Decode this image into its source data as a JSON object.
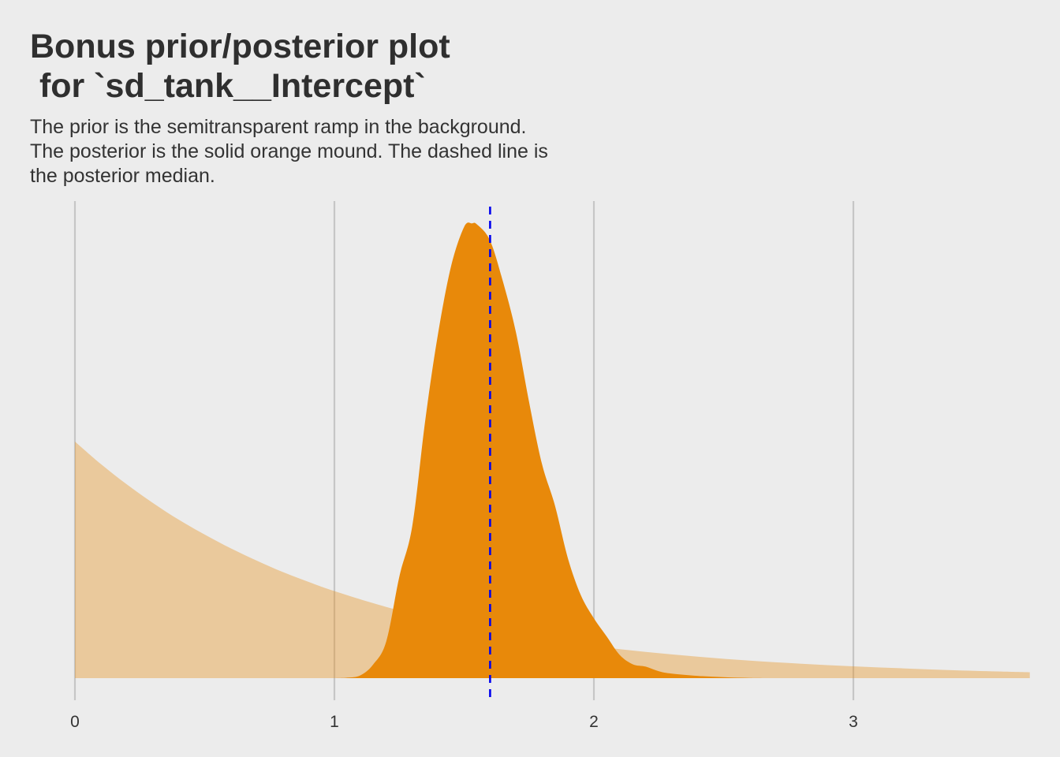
{
  "chart_data": {
    "type": "area",
    "title": "Bonus prior/posterior plot\n for `sd_tank__Intercept`",
    "subtitle": "The prior is the semitransparent ramp in the background. The posterior is the solid orange mound. The dashed line is the posterior median.",
    "xlabel": "",
    "ylabel": "",
    "xlim": [
      0,
      3.68
    ],
    "x_ticks": [
      0,
      1,
      2,
      3
    ],
    "x_tick_labels": [
      "0",
      "1",
      "2",
      "3"
    ],
    "grid": "vertical major only",
    "legend": "none",
    "series": [
      {
        "role": "prior",
        "description": "semitransparent ramp",
        "color": "#e8890a",
        "opacity": 0.35,
        "x": [
          0,
          0.1,
          0.2,
          0.3,
          0.4,
          0.5,
          0.6,
          0.7,
          0.8,
          0.9,
          1.0,
          1.2,
          1.4,
          1.6,
          1.8,
          2.0,
          2.2,
          2.4,
          2.6,
          2.8,
          3.0,
          3.2,
          3.4,
          3.6,
          3.68
        ],
        "y": [
          1.0,
          0.905,
          0.819,
          0.741,
          0.67,
          0.607,
          0.549,
          0.497,
          0.449,
          0.407,
          0.368,
          0.301,
          0.247,
          0.202,
          0.165,
          0.135,
          0.111,
          0.091,
          0.074,
          0.061,
          0.05,
          0.041,
          0.033,
          0.027,
          0.025
        ]
      },
      {
        "role": "posterior",
        "description": "solid orange mound",
        "color": "#e8890a",
        "opacity": 1,
        "x": [
          1.0,
          1.05,
          1.1,
          1.15,
          1.2,
          1.25,
          1.3,
          1.35,
          1.4,
          1.45,
          1.5,
          1.53,
          1.55,
          1.6,
          1.65,
          1.7,
          1.75,
          1.8,
          1.85,
          1.9,
          1.95,
          2.0,
          2.05,
          2.1,
          2.15,
          2.2,
          2.25,
          2.3,
          2.4,
          2.5,
          2.6,
          2.7
        ],
        "y": [
          0.0,
          0.002,
          0.012,
          0.06,
          0.16,
          0.44,
          0.66,
          1.12,
          1.5,
          1.79,
          1.96,
          1.975,
          1.97,
          1.9,
          1.72,
          1.5,
          1.2,
          0.93,
          0.75,
          0.52,
          0.36,
          0.26,
          0.18,
          0.1,
          0.06,
          0.05,
          0.03,
          0.02,
          0.01,
          0.004,
          0.001,
          0.0
        ]
      }
    ],
    "reference_lines": [
      {
        "label": "posterior median",
        "x": 1.6,
        "style": "dashed",
        "color": "#0000ee"
      }
    ],
    "colors": {
      "background": "#ececec",
      "grid": "#c6c6c6",
      "posterior": "#e8890a",
      "prior": "#f0c48a",
      "median_line": "#0000ee",
      "text": "#333333"
    }
  }
}
